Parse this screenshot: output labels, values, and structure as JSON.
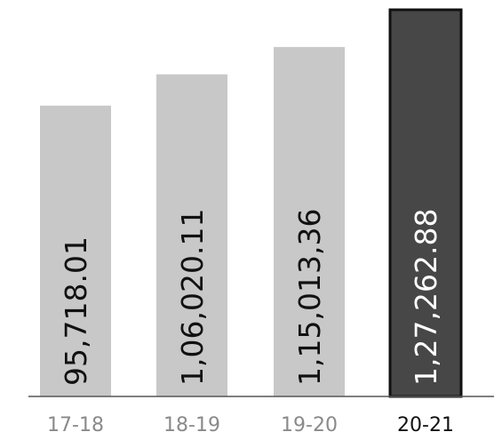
{
  "chart_data": {
    "type": "bar",
    "categories": [
      "17-18",
      "18-19",
      "19-20",
      "20-21"
    ],
    "values": [
      95718.01,
      106020.11,
      115013.36,
      127262.88
    ],
    "value_labels": [
      "95,718.01",
      "1,06,020.11",
      "1,15,013,36",
      "1,27,262.88"
    ],
    "highlight_index": 3,
    "ylim": [
      0,
      127262.88
    ],
    "grid": false,
    "legend": "none",
    "colors": {
      "bar": "#c8c8c8",
      "bar_highlight": "#474747",
      "bar_highlight_border": "#111111",
      "label": "#111111",
      "label_highlight": "#ffffff",
      "axis": "#555555",
      "category": "#8a8a8a",
      "category_highlight": "#111111"
    }
  }
}
